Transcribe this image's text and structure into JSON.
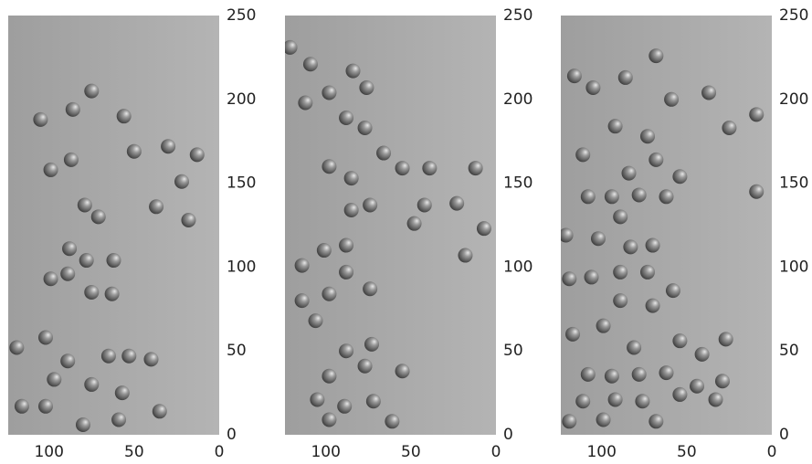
{
  "chart_data": [
    {
      "type": "scatter",
      "xlim": [
        124,
        0
      ],
      "ylim": [
        0,
        250
      ],
      "xticks": [
        100,
        50,
        0
      ],
      "yticks": [
        0,
        50,
        100,
        150,
        200,
        250
      ],
      "x": [
        99,
        87,
        75,
        86,
        105,
        56,
        50,
        30,
        13,
        22,
        37,
        18,
        79,
        71,
        88,
        78,
        62,
        89,
        99,
        75,
        63,
        119,
        102,
        89,
        65,
        53,
        40,
        97,
        75,
        57,
        35,
        116,
        102,
        80,
        59
      ],
      "values": [
        158,
        164,
        205,
        194,
        188,
        190,
        169,
        172,
        167,
        151,
        136,
        128,
        137,
        130,
        111,
        104,
        104,
        96,
        93,
        85,
        84,
        52,
        58,
        44,
        47,
        47,
        45,
        33,
        30,
        25,
        14,
        17,
        17,
        6,
        9
      ]
    },
    {
      "type": "scatter",
      "xlim": [
        124,
        0
      ],
      "ylim": [
        0,
        250
      ],
      "xticks": [
        100,
        50,
        0
      ],
      "yticks": [
        0,
        50,
        100,
        150,
        200,
        250
      ],
      "x": [
        121,
        109,
        112,
        98,
        84,
        76,
        88,
        77,
        98,
        85,
        66,
        55,
        39,
        12,
        85,
        74,
        42,
        23,
        48,
        7,
        18,
        101,
        88,
        114,
        88,
        98,
        74,
        114,
        106,
        88,
        73,
        98,
        77,
        55,
        105,
        89,
        72,
        98,
        61
      ],
      "values": [
        231,
        221,
        198,
        204,
        217,
        207,
        189,
        183,
        160,
        153,
        168,
        159,
        159,
        159,
        134,
        137,
        137,
        138,
        126,
        123,
        107,
        110,
        113,
        101,
        97,
        84,
        87,
        80,
        68,
        50,
        54,
        35,
        41,
        38,
        21,
        17,
        20,
        9,
        8
      ]
    },
    {
      "type": "scatter",
      "xlim": [
        124,
        0
      ],
      "ylim": [
        0,
        250
      ],
      "xticks": [
        100,
        50,
        0
      ],
      "yticks": [
        0,
        50,
        100,
        150,
        200,
        250
      ],
      "x": [
        116,
        105,
        86,
        68,
        59,
        37,
        9,
        25,
        92,
        73,
        111,
        84,
        54,
        68,
        108,
        94,
        78,
        62,
        9,
        89,
        121,
        102,
        83,
        70,
        119,
        106,
        89,
        73,
        58,
        89,
        70,
        117,
        99,
        81,
        54,
        41,
        27,
        108,
        94,
        78,
        62,
        44,
        29,
        111,
        92,
        76,
        54,
        33,
        119,
        99,
        68
      ],
      "values": [
        214,
        207,
        213,
        226,
        200,
        204,
        191,
        183,
        184,
        178,
        167,
        156,
        154,
        164,
        142,
        142,
        143,
        142,
        145,
        130,
        119,
        117,
        112,
        113,
        93,
        94,
        97,
        97,
        86,
        80,
        77,
        60,
        65,
        52,
        56,
        48,
        57,
        36,
        35,
        36,
        37,
        29,
        32,
        20,
        21,
        20,
        24,
        21,
        8,
        9,
        8
      ]
    }
  ]
}
